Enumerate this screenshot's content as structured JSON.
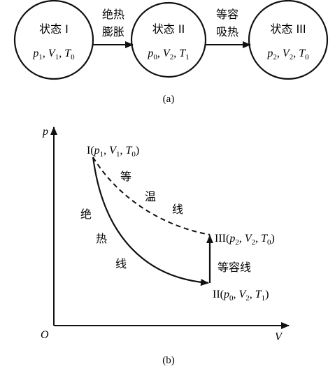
{
  "diagram_a": {
    "caption": "(a)",
    "states": [
      {
        "id": "I",
        "name": "状态 I",
        "params": [
          {
            "s": "p",
            "sub": "1"
          },
          {
            "s": "V",
            "sub": "1"
          },
          {
            "s": "T",
            "sub": "0"
          }
        ]
      },
      {
        "id": "II",
        "name": "状态 II",
        "params": [
          {
            "s": "p",
            "sub": "0"
          },
          {
            "s": "V",
            "sub": "2"
          },
          {
            "s": "T",
            "sub": "1"
          }
        ]
      },
      {
        "id": "III",
        "name": "状态 III",
        "params": [
          {
            "s": "p",
            "sub": "2"
          },
          {
            "s": "V",
            "sub": "2"
          },
          {
            "s": "T",
            "sub": "0"
          }
        ]
      }
    ],
    "transitions": [
      {
        "from": "I",
        "to": "II",
        "line1": "绝热",
        "line2": "膨胀"
      },
      {
        "from": "II",
        "to": "III",
        "line1": "等容",
        "line2": "吸热"
      }
    ]
  },
  "diagram_b": {
    "caption": "(b)",
    "axis": {
      "y_label": "p",
      "x_label": "V",
      "origin": "O"
    },
    "points": {
      "I": {
        "roman": "I",
        "params": [
          {
            "s": "p",
            "sub": "1"
          },
          {
            "s": "V",
            "sub": "1"
          },
          {
            "s": "T",
            "sub": "0"
          }
        ]
      },
      "II": {
        "roman": "II",
        "params": [
          {
            "s": "p",
            "sub": "0"
          },
          {
            "s": "V",
            "sub": "2"
          },
          {
            "s": "T",
            "sub": "1"
          }
        ]
      },
      "III": {
        "roman": "III",
        "params": [
          {
            "s": "p",
            "sub": "2"
          },
          {
            "s": "V",
            "sub": "2"
          },
          {
            "s": "T",
            "sub": "0"
          }
        ]
      }
    },
    "curves": {
      "isotherm_chars": [
        "等",
        "温",
        "线"
      ],
      "adiabat_chars": [
        "绝",
        "热",
        "线"
      ],
      "isochoric_label": "等容线"
    }
  }
}
